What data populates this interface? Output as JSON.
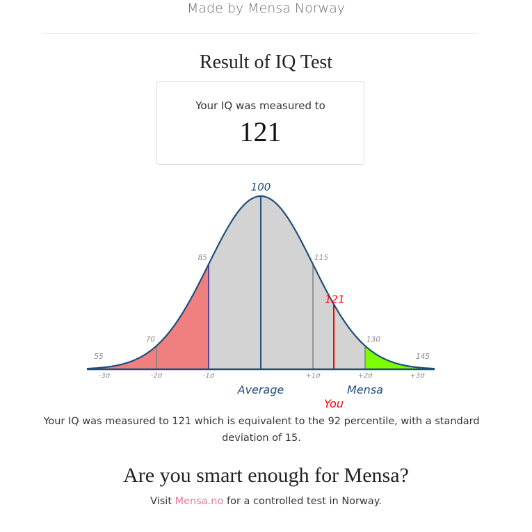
{
  "header": {
    "note": "Made by Mensa Norway"
  },
  "result": {
    "title": "Result of IQ Test",
    "measured_label": "Your IQ was measured to",
    "iq_value": "121"
  },
  "chart_data": {
    "type": "area",
    "distribution": "normal",
    "mean": 100,
    "std_dev": 15,
    "x_range": [
      50,
      150
    ],
    "score_labels": [
      "55",
      "70",
      "85",
      "100",
      "115",
      "130",
      "145"
    ],
    "sigma_labels": [
      "-3σ",
      "-2σ",
      "-1σ",
      "",
      "+1σ",
      "+2σ",
      "+3σ"
    ],
    "average_label": "Average",
    "mensa_label": "Mensa",
    "you_label": "You",
    "user_score": 121,
    "user_score_label": "121",
    "regions": [
      {
        "from": 50,
        "to": 85,
        "color": "#f08080"
      },
      {
        "from": 85,
        "to": 130,
        "color": "#d3d3d3"
      },
      {
        "from": 130,
        "to": 150,
        "color": "#7cfc00"
      }
    ],
    "colors": {
      "curve": "#1f4e79",
      "label_blue": "#1f4e79",
      "user_marker": "#ff0000",
      "minus_one_sigma_line": "#2a2a8a",
      "grey_line": "#808080",
      "axis": "#1f4e79"
    }
  },
  "summary": {
    "text": "Your IQ was measured to 121 which is equivalent to the 92 percentile, with a standard deviation of 15."
  },
  "cta": {
    "title": "Are you smart enough for Mensa?",
    "prefix": "Visit ",
    "link_text": "Mensa.no",
    "suffix": " for a controlled test in Norway."
  }
}
